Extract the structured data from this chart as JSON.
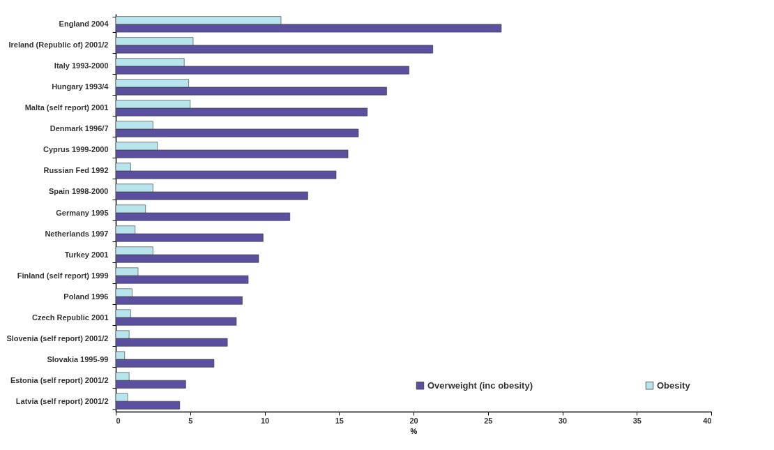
{
  "chart_data": {
    "type": "bar",
    "orientation": "horizontal",
    "xlabel": "%",
    "categories": [
      "England 2004",
      "Ireland (Republic of) 2001/2",
      "Italy 1993-2000",
      "Hungary 1993/4",
      "Malta (self report) 2001",
      "Denmark 1996/7",
      "Cyprus 1999-2000",
      "Russian Fed 1992",
      "Spain 1998-2000",
      "Germany 1995",
      "Netherlands 1997",
      "Turkey  2001",
      "Finland (self report) 1999",
      "Poland 1996",
      "Czech Republic 2001",
      "Slovenia (self report) 2001/2",
      "Slovakia 1995-99",
      "Estonia (self report) 2001/2",
      "Latvia (self report) 2001/2"
    ],
    "series": [
      {
        "name": "Overweight (inc obesity)",
        "color": "#5b50a0",
        "values": [
          25.9,
          21.3,
          19.7,
          18.2,
          16.9,
          16.3,
          15.6,
          14.8,
          12.9,
          11.7,
          9.9,
          9.6,
          8.9,
          8.5,
          8.1,
          7.5,
          6.6,
          4.7,
          4.3
        ]
      },
      {
        "name": "Obesity",
        "color": "#b8e4ec",
        "values": [
          11.1,
          5.2,
          4.6,
          4.9,
          5.0,
          2.5,
          2.8,
          1.0,
          2.5,
          2.0,
          1.3,
          2.5,
          1.5,
          1.1,
          1.0,
          0.9,
          0.6,
          0.9,
          0.8
        ]
      }
    ],
    "xlim": [
      0,
      40
    ],
    "xticks": [
      0,
      5,
      10,
      15,
      20,
      25,
      30,
      35,
      40
    ],
    "legend": "bottom right"
  }
}
